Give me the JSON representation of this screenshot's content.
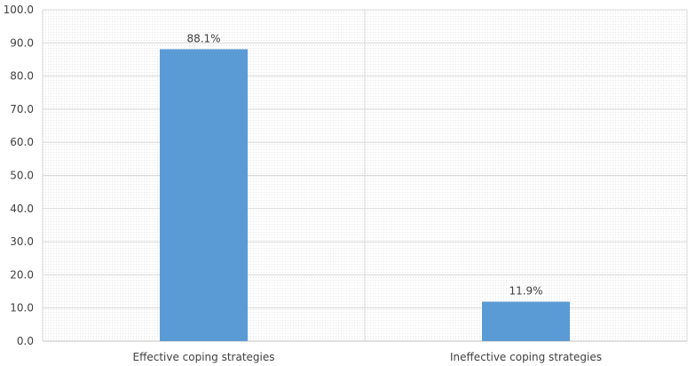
{
  "chart_data": {
    "type": "bar",
    "categories": [
      "Effective coping strategies",
      "Ineffective coping strategies"
    ],
    "values": [
      88.1,
      11.9
    ],
    "data_labels": [
      "88.1%",
      "11.9%"
    ],
    "y_ticks": [
      "0.0",
      "10.0",
      "20.0",
      "30.0",
      "40.0",
      "50.0",
      "60.0",
      "70.0",
      "80.0",
      "90.0",
      "100.0"
    ],
    "ylim": [
      0,
      100
    ],
    "title": "",
    "xlabel": "",
    "ylabel": "",
    "grid": true,
    "legend": "none",
    "colors": {
      "bar": "#5b9bd5",
      "plot_background": "#f3f3f3",
      "gridline": "#d9d9d9",
      "text": "#404040"
    }
  }
}
